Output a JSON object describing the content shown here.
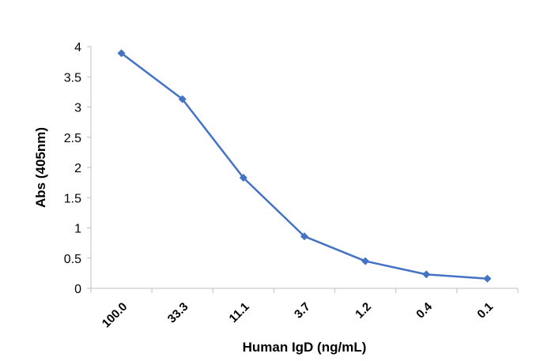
{
  "chart_data": {
    "type": "line",
    "categories": [
      "100.0",
      "33.3",
      "11.1",
      "3.7",
      "1.2",
      "0.4",
      "0.1"
    ],
    "series": [
      {
        "values": [
          3.89,
          3.13,
          1.83,
          0.86,
          0.45,
          0.23,
          0.16
        ],
        "color": "#4472C4",
        "marker": "diamond"
      }
    ],
    "xlabel": "Human IgD (ng/mL)",
    "ylabel": "Abs (405nm)",
    "ylim": [
      0,
      4
    ],
    "yticks": [
      "0",
      "0.5",
      "1",
      "1.5",
      "2",
      "2.5",
      "3",
      "3.5",
      "4"
    ],
    "grid": false
  }
}
